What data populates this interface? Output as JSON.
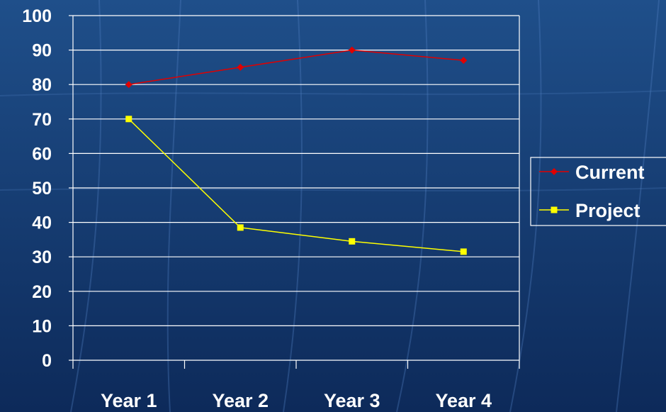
{
  "colors": {
    "background_top": "#1f4f8a",
    "background_bottom": "#0d2a5a",
    "gridline": "#ffffff",
    "text": "#ffffff",
    "current": "#e00000",
    "project": "#ffff00"
  },
  "chart_data": {
    "type": "line",
    "categories": [
      "Year 1",
      "Year 2",
      "Year 3",
      "Year 4"
    ],
    "series": [
      {
        "name": "Current",
        "values": [
          80,
          85,
          90,
          87
        ],
        "color": "#e00000",
        "marker": "diamond"
      },
      {
        "name": "Project",
        "values": [
          70,
          38.5,
          34.5,
          31.5
        ],
        "color": "#ffff00",
        "marker": "square"
      }
    ],
    "ylim": [
      0,
      100
    ],
    "yticks": [
      0,
      10,
      20,
      30,
      40,
      50,
      60,
      70,
      80,
      90,
      100
    ],
    "grid": true,
    "legend_position": "right"
  }
}
